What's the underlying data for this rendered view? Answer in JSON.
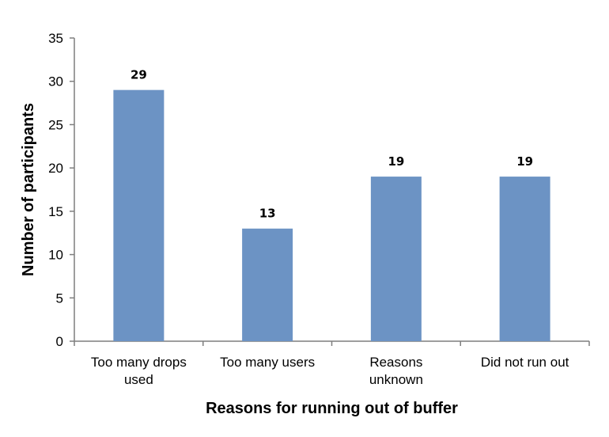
{
  "chart_data": {
    "type": "bar",
    "categories": [
      [
        "Too many drops",
        "used"
      ],
      [
        "Too many users"
      ],
      [
        "Reasons",
        "unknown"
      ],
      [
        "Did not run out"
      ]
    ],
    "values": [
      29,
      13,
      19,
      19
    ],
    "data_labels": [
      "29",
      "13",
      "19",
      "19"
    ],
    "title": "",
    "xlabel": "Reasons for running out of buffer",
    "ylabel": "Number of participants",
    "ylim": [
      0,
      35
    ],
    "yticks": [
      0,
      5,
      10,
      15,
      20,
      25,
      30,
      35
    ],
    "ytick_labels": [
      "0",
      "5",
      "10",
      "15",
      "20",
      "25",
      "30",
      "35"
    ],
    "grid": false,
    "legend": "none",
    "bar_color": "#6C93C4"
  }
}
